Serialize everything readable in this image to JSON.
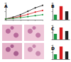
{
  "chart_data": [
    {
      "type": "line",
      "title": "A",
      "x": [
        0,
        1,
        2,
        3,
        4,
        5
      ],
      "xlim": [
        0,
        5
      ],
      "xticks": [
        0,
        1,
        2,
        3,
        4,
        5
      ],
      "ylim": [
        0,
        100
      ],
      "yticks": [
        0,
        50,
        100
      ],
      "tick_labels": false,
      "marker": "circle",
      "series": [
        {
          "color": "#222222",
          "values": [
            5,
            15,
            30,
            50,
            70,
            85
          ]
        },
        {
          "color": "#d7191c",
          "values": [
            5,
            10,
            20,
            32,
            45,
            55
          ]
        },
        {
          "color": "#1a9641",
          "values": [
            5,
            8,
            12,
            18,
            24,
            30
          ]
        }
      ]
    },
    {
      "type": "bar",
      "title": "B",
      "categories": [
        null,
        null,
        null
      ],
      "values": [
        30,
        80,
        50
      ],
      "colors": [
        "#1a9641",
        "#d7191c",
        "#222222"
      ],
      "ylim": [
        0,
        100
      ],
      "yticks": [
        0,
        50,
        100
      ],
      "tick_labels": false
    },
    {
      "type": "bar",
      "title": "C",
      "categories": [
        null,
        null,
        null
      ],
      "values": [
        40,
        85,
        60
      ],
      "colors": [
        "#1a9641",
        "#d7191c",
        "#222222"
      ],
      "ylim": [
        0,
        100
      ],
      "yticks": [
        0,
        50,
        100
      ],
      "tick_labels": false
    },
    {
      "type": "bar",
      "title": "D",
      "categories": [
        null,
        null,
        null
      ],
      "values": [
        35,
        90,
        55
      ],
      "colors": [
        "#1a9641",
        "#d7191c",
        "#222222"
      ],
      "ylim": [
        0,
        100
      ],
      "yticks": [
        0,
        50,
        100
      ],
      "tick_labels": false
    }
  ]
}
